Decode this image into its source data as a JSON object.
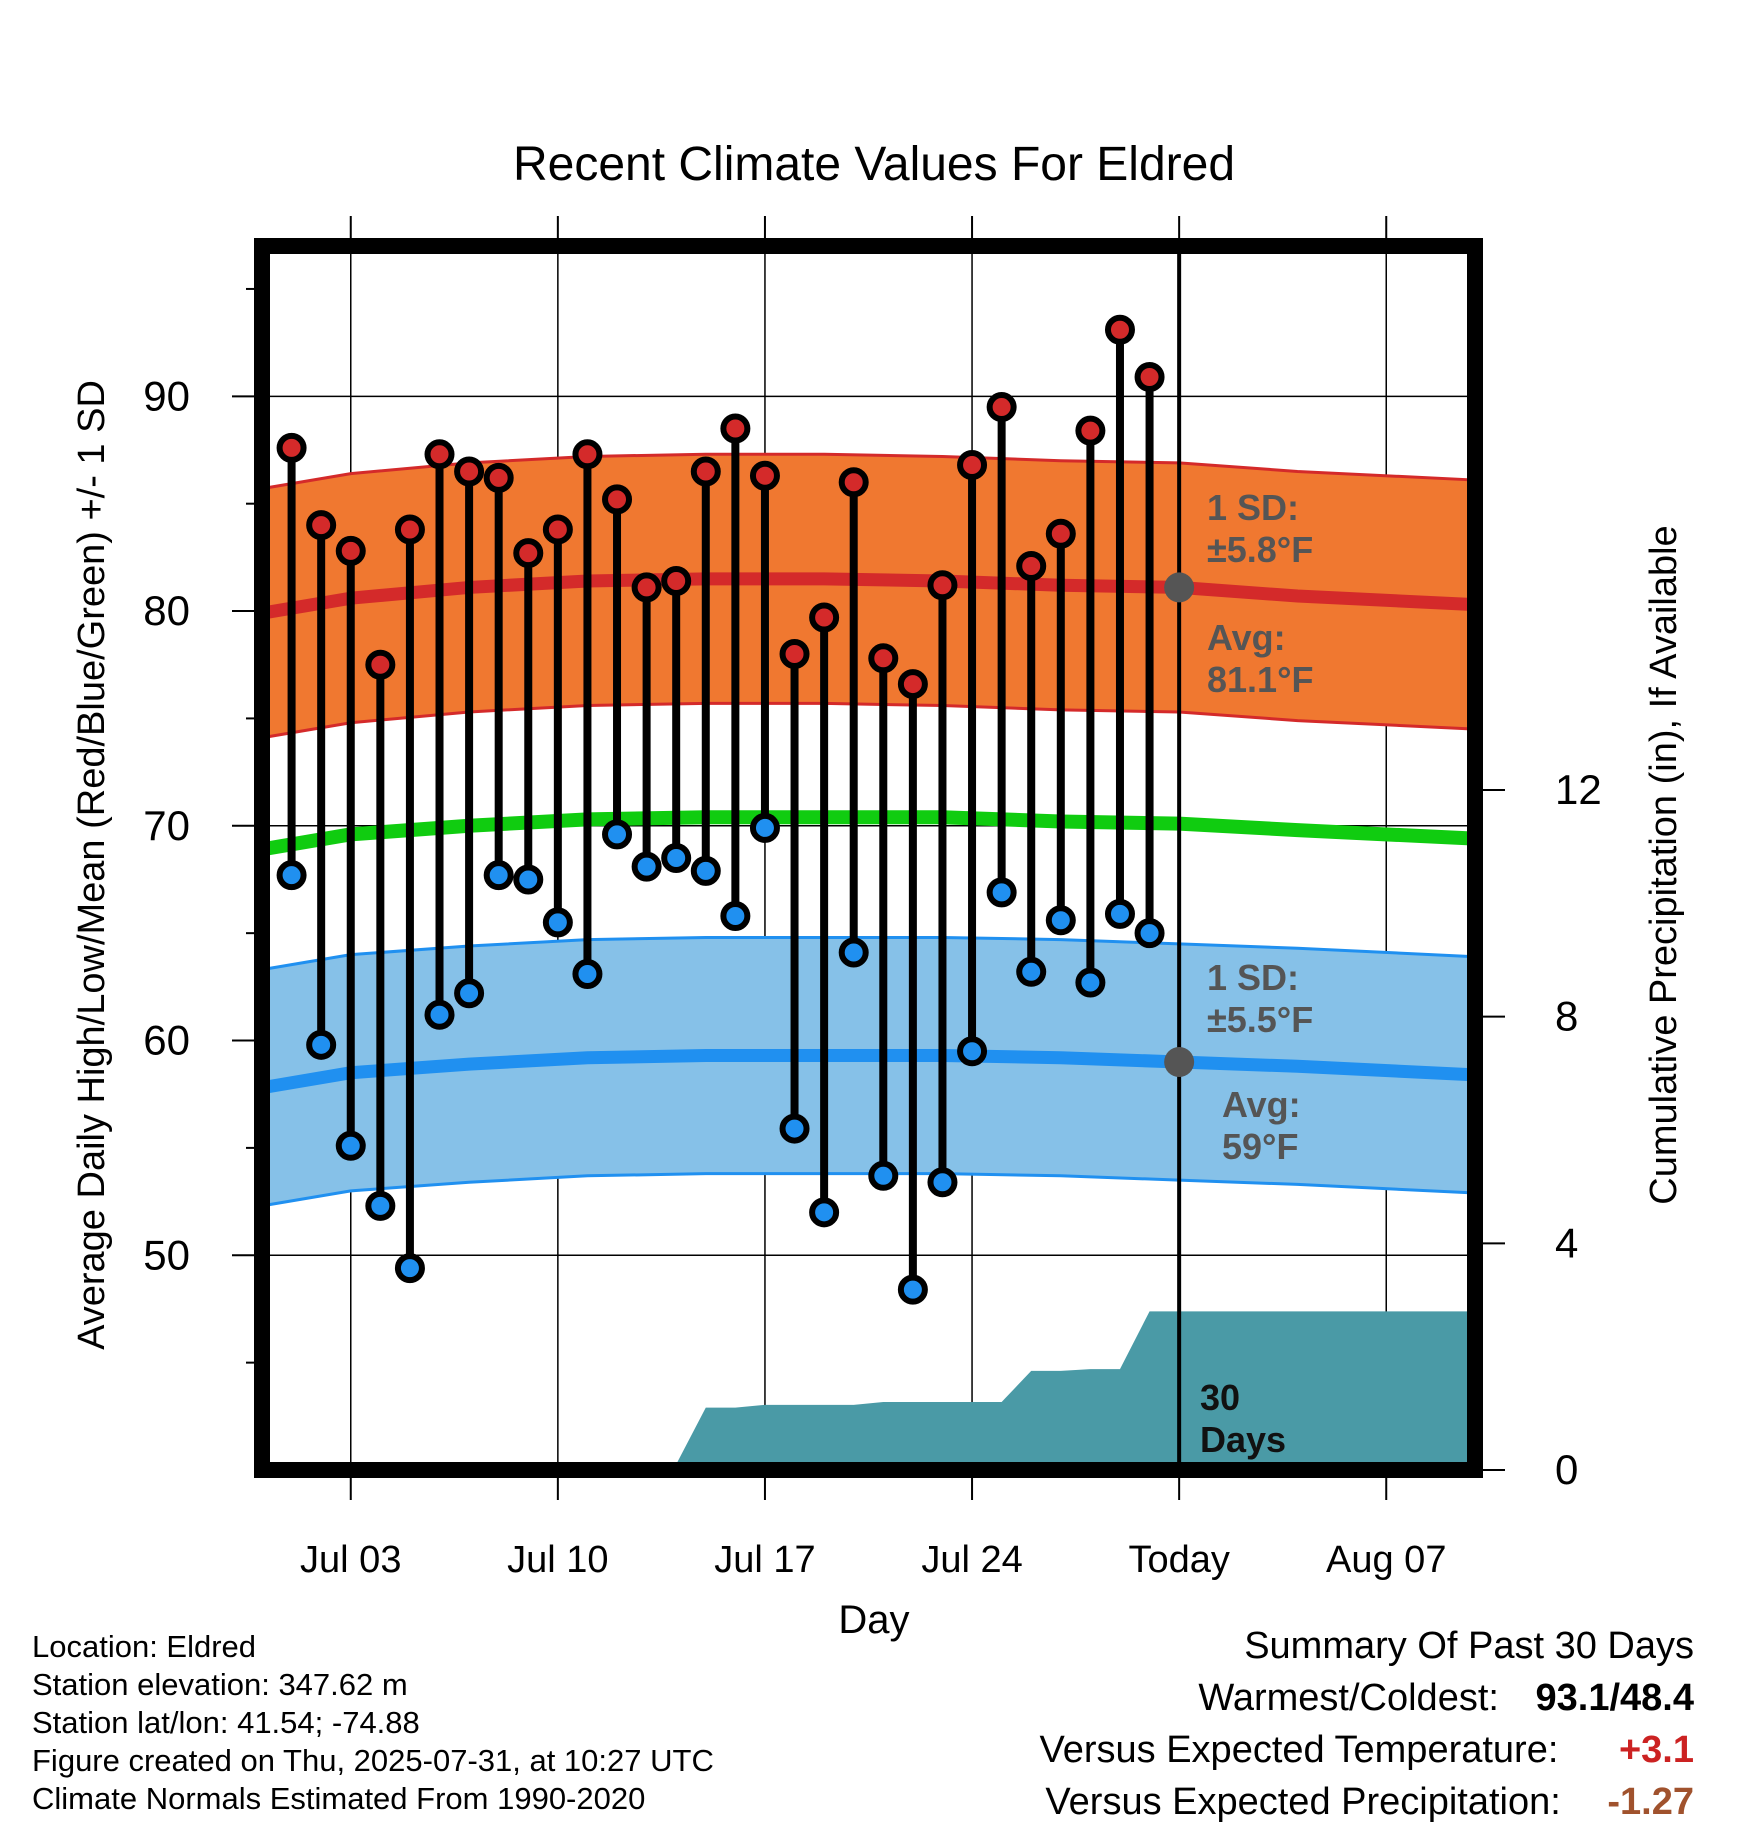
{
  "chart_data": {
    "type": "line",
    "title": "Recent Climate Values For Eldred",
    "xlabel": "Day",
    "ylabel": "Average Daily High/Low/Mean (Red/Blue/Green) +/- 1 SD",
    "y2label": "Cumulative Precipitation (in), If Available",
    "xlim": [
      "2025-06-30",
      "2025-08-10"
    ],
    "ylim": [
      40,
      97
    ],
    "y2lim": [
      0,
      21.6
    ],
    "x_ticks": [
      {
        "date": "2025-07-03",
        "label": "Jul 03"
      },
      {
        "date": "2025-07-10",
        "label": "Jul 10"
      },
      {
        "date": "2025-07-17",
        "label": "Jul 17"
      },
      {
        "date": "2025-07-24",
        "label": "Jul 24"
      },
      {
        "date": "2025-07-31",
        "label": "Today"
      },
      {
        "date": "2025-08-07",
        "label": "Aug 07"
      }
    ],
    "y_ticks": [
      50,
      60,
      70,
      80,
      90
    ],
    "y2_ticks": [
      0,
      4,
      8,
      12
    ],
    "grid": true,
    "today": "2025-07-31",
    "days": [
      "2025-07-01",
      "2025-07-02",
      "2025-07-03",
      "2025-07-04",
      "2025-07-05",
      "2025-07-06",
      "2025-07-07",
      "2025-07-08",
      "2025-07-09",
      "2025-07-10",
      "2025-07-11",
      "2025-07-12",
      "2025-07-13",
      "2025-07-14",
      "2025-07-15",
      "2025-07-16",
      "2025-07-17",
      "2025-07-18",
      "2025-07-19",
      "2025-07-20",
      "2025-07-21",
      "2025-07-22",
      "2025-07-23",
      "2025-07-24",
      "2025-07-25",
      "2025-07-26",
      "2025-07-27",
      "2025-07-28",
      "2025-07-29",
      "2025-07-30"
    ],
    "daily_high": [
      87.6,
      84.0,
      82.8,
      77.5,
      83.8,
      87.3,
      86.5,
      86.2,
      82.7,
      83.8,
      87.3,
      85.2,
      81.1,
      81.4,
      86.5,
      88.5,
      86.3,
      78.0,
      79.7,
      86.0,
      77.8,
      76.6,
      81.2,
      86.8,
      89.5,
      82.1,
      83.6,
      88.4,
      93.1,
      90.9
    ],
    "daily_low": [
      67.7,
      59.8,
      55.1,
      52.3,
      49.4,
      61.2,
      62.2,
      67.7,
      67.5,
      65.5,
      63.1,
      69.6,
      68.1,
      68.5,
      67.9,
      65.8,
      69.9,
      55.9,
      52.0,
      64.1,
      53.7,
      48.4,
      53.4,
      59.5,
      66.9,
      63.2,
      65.6,
      62.7,
      65.9,
      65.0
    ],
    "normal_dates": [
      "2025-06-30",
      "2025-07-03",
      "2025-07-07",
      "2025-07-11",
      "2025-07-15",
      "2025-07-19",
      "2025-07-23",
      "2025-07-27",
      "2025-07-31",
      "2025-08-04",
      "2025-08-10"
    ],
    "normal_high": [
      79.9,
      80.6,
      81.1,
      81.4,
      81.5,
      81.5,
      81.4,
      81.2,
      81.1,
      80.7,
      80.3
    ],
    "normal_low": [
      57.8,
      58.5,
      58.9,
      59.2,
      59.3,
      59.3,
      59.3,
      59.2,
      59.0,
      58.8,
      58.4
    ],
    "normal_mean": [
      68.9,
      69.6,
      70.0,
      70.3,
      70.4,
      70.4,
      70.4,
      70.2,
      70.1,
      69.8,
      69.4
    ],
    "high_sd": 5.8,
    "low_sd": 5.5,
    "precip_cumulative": [
      0.0,
      0.0,
      0.1,
      0.1,
      0.1,
      0.1,
      0.1,
      0.1,
      0.1,
      0.1,
      0.1,
      0.1,
      0.1,
      0.1,
      1.1,
      1.1,
      1.15,
      1.15,
      1.15,
      1.15,
      1.2,
      1.2,
      1.2,
      1.2,
      1.2,
      1.75,
      1.75,
      1.78,
      1.78,
      2.8,
      2.8
    ],
    "annotations": {
      "high_sd_line1": "1 SD:",
      "high_sd_line2": "±5.8°F",
      "high_avg_line1": "Avg:",
      "high_avg_line2": "81.1°F",
      "low_sd_line1": "1 SD:",
      "low_sd_line2": "±5.5°F",
      "low_avg_line1": "Avg:",
      "low_avg_line2": "59°F",
      "precip_days_line1": "30",
      "precip_days_line2": "Days"
    }
  },
  "info": {
    "location": "Location: Eldred",
    "elevation": "Station elevation: 347.62 m",
    "latlon": "Station lat/lon: 41.54; -74.88",
    "created": "Figure created on Thu, 2025-07-31, at 10:27 UTC",
    "normals": "Climate Normals Estimated From 1990-2020"
  },
  "summary": {
    "title": "Summary Of Past 30 Days",
    "warm_cold_label": "Warmest/Coldest:",
    "warm_cold_value": "93.1/48.4",
    "temp_label": "Versus Expected Temperature:",
    "temp_value": "+3.1",
    "precip_label": "Versus Expected Precipitation:",
    "precip_value": "-1.27"
  },
  "colors": {
    "high_band": "#f07830",
    "high_line": "#d42a2a",
    "low_band": "#86c1e8",
    "low_line": "#2090f0",
    "mean_line": "#10cc10",
    "precip_fill": "#4a9aa6",
    "high_marker": "#d42a2a",
    "low_marker": "#2090f0",
    "annotation_text": "#555555",
    "positive_temp": "#cc2222",
    "negative_precip": "#a0522d"
  }
}
